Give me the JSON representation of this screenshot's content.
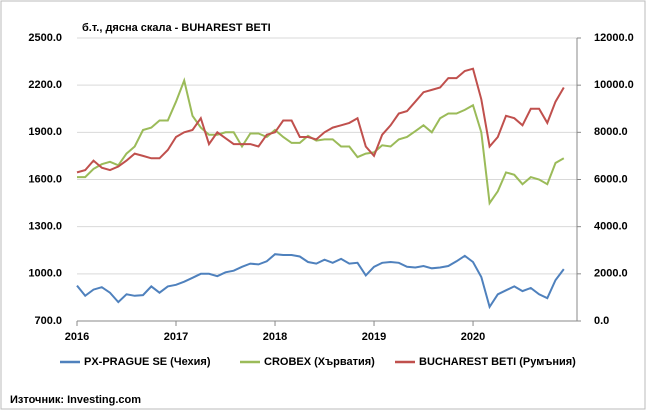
{
  "chart_data": {
    "type": "line",
    "annotation": "б.т., дясна скала - BUHAREST BETI",
    "source": "Източник: Investing.com",
    "x": [
      2016,
      2016.083,
      2016.167,
      2016.25,
      2016.333,
      2016.417,
      2016.5,
      2016.583,
      2016.667,
      2016.75,
      2016.833,
      2016.917,
      2017,
      2017.083,
      2017.167,
      2017.25,
      2017.333,
      2017.417,
      2017.5,
      2017.583,
      2017.667,
      2017.75,
      2017.833,
      2017.917,
      2018,
      2018.083,
      2018.167,
      2018.25,
      2018.333,
      2018.417,
      2018.5,
      2018.583,
      2018.667,
      2018.75,
      2018.833,
      2018.917,
      2019,
      2019.083,
      2019.167,
      2019.25,
      2019.333,
      2019.417,
      2019.5,
      2019.583,
      2019.667,
      2019.75,
      2019.833,
      2019.917,
      2020,
      2020.083,
      2020.167,
      2020.25,
      2020.333,
      2020.417,
      2020.5,
      2020.583,
      2020.667,
      2020.75,
      2020.833,
      2020.917
    ],
    "xlim": [
      2016,
      2021.05
    ],
    "xticks": [
      2016,
      2017,
      2018,
      2019,
      2020
    ],
    "ylim": [
      700,
      2500
    ],
    "yticks": [
      {
        "value": 700,
        "label": "700.0"
      },
      {
        "value": 1000,
        "label": "1000.0"
      },
      {
        "value": 1300,
        "label": "1300.0"
      },
      {
        "value": 1600,
        "label": "1600.0"
      },
      {
        "value": 1900,
        "label": "1900.0"
      },
      {
        "value": 2200,
        "label": "2200.0"
      },
      {
        "value": 2500,
        "label": "2500.0"
      }
    ],
    "y2lim": [
      0,
      12000
    ],
    "y2ticks": [
      {
        "value": 0,
        "label": "0.0"
      },
      {
        "value": 2000,
        "label": "2000.0"
      },
      {
        "value": 4000,
        "label": "4000.0"
      },
      {
        "value": 6000,
        "label": "6000.0"
      },
      {
        "value": 8000,
        "label": "8000.0"
      },
      {
        "value": 10000,
        "label": "10000.0"
      },
      {
        "value": 12000,
        "label": "12000.0"
      }
    ],
    "grid": true,
    "series": [
      {
        "name": "PX-PRAGUE SE (Чехия)",
        "color": "#4f81bd",
        "values": [
          925,
          860,
          900,
          915,
          880,
          820,
          870,
          860,
          865,
          920,
          880,
          920,
          930,
          950,
          975,
          1000,
          1000,
          985,
          1010,
          1020,
          1045,
          1065,
          1060,
          1080,
          1125,
          1120,
          1120,
          1110,
          1075,
          1065,
          1090,
          1070,
          1095,
          1065,
          1070,
          990,
          1045,
          1070,
          1075,
          1070,
          1045,
          1040,
          1050,
          1035,
          1040,
          1050,
          1080,
          1115,
          1075,
          980,
          790,
          870,
          895,
          920,
          890,
          910,
          870,
          845,
          960,
          1030
        ]
      },
      {
        "name": "CROBEX (Хърватия)",
        "color": "#9bbb59",
        "axis": "y2",
        "values": [
          6100,
          6100,
          6450,
          6650,
          6750,
          6600,
          7100,
          7400,
          8100,
          8200,
          8500,
          8500,
          9300,
          10200,
          8700,
          8200,
          7900,
          7900,
          8000,
          8000,
          7400,
          7950,
          7950,
          7800,
          8100,
          7800,
          7550,
          7550,
          7850,
          7650,
          7700,
          7700,
          7400,
          7400,
          6950,
          7100,
          7150,
          7450,
          7400,
          7700,
          7800,
          8050,
          8300,
          8000,
          8600,
          8800,
          8800,
          8950,
          9150,
          8000,
          5000,
          5500,
          6300,
          6200,
          5800,
          6100,
          6000,
          5800,
          6700,
          6900
        ]
      },
      {
        "name": "BUCHAREST BETI (Румъния)",
        "color": "#c0504d",
        "axis": "y2",
        "values": [
          6300,
          6400,
          6800,
          6500,
          6400,
          6550,
          6800,
          7100,
          7000,
          6900,
          6900,
          7250,
          7800,
          8000,
          8100,
          8600,
          7500,
          8000,
          7750,
          7500,
          7500,
          7500,
          7400,
          7900,
          8000,
          8500,
          8500,
          7800,
          7800,
          7700,
          8000,
          8200,
          8300,
          8400,
          8600,
          7400,
          7000,
          7900,
          8300,
          8800,
          8900,
          9300,
          9700,
          9800,
          9900,
          10300,
          10300,
          10600,
          10700,
          9400,
          7400,
          7800,
          8700,
          8600,
          8300,
          9000,
          9000,
          8400,
          9300,
          9900
        ]
      }
    ]
  }
}
